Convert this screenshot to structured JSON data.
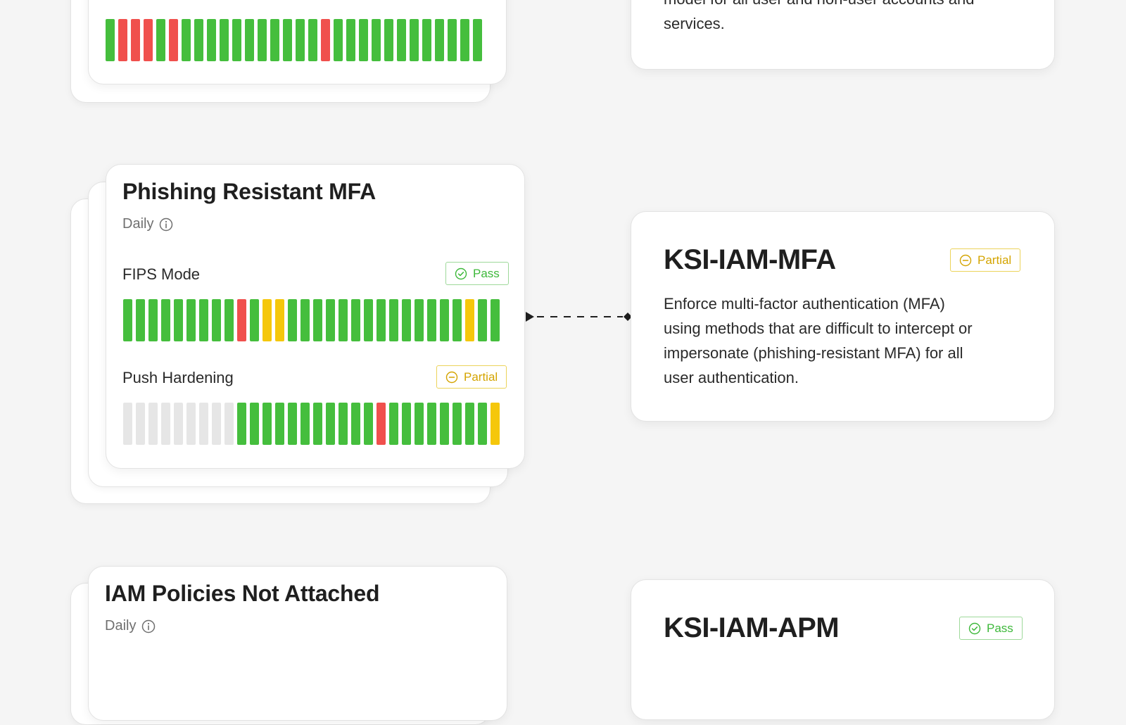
{
  "colors": {
    "pass": "#45be3d",
    "fail": "#f0504d",
    "partial": "#f5c70b",
    "no_data": "#e6e6e6",
    "pass_badge_text": "#3db83a",
    "partial_badge_text": "#d4a400"
  },
  "top_card": {
    "bars": [
      "g",
      "r",
      "r",
      "r",
      "g",
      "r",
      "g",
      "g",
      "g",
      "g",
      "g",
      "g",
      "g",
      "g",
      "g",
      "g",
      "g",
      "r",
      "g",
      "g",
      "g",
      "g",
      "g",
      "g",
      "g",
      "g",
      "g",
      "g",
      "g",
      "g"
    ]
  },
  "top_ksi": {
    "desc_line1": "model for all user and non-user accounts and",
    "desc_line2": "services."
  },
  "phishing_card": {
    "title": "Phishing Resistant MFA",
    "frequency": "Daily",
    "frequency_icon": "info-icon",
    "checks": [
      {
        "label": "FIPS Mode",
        "badge": "Pass",
        "badge_icon": "check-circle-icon",
        "bars": [
          "g",
          "g",
          "g",
          "g",
          "g",
          "g",
          "g",
          "g",
          "g",
          "r",
          "g",
          "y",
          "y",
          "g",
          "g",
          "g",
          "g",
          "g",
          "g",
          "g",
          "g",
          "g",
          "g",
          "g",
          "g",
          "g",
          "g",
          "y",
          "g",
          "g"
        ]
      },
      {
        "label": "Push Hardening",
        "badge": "Partial",
        "badge_icon": "minus-circle-icon",
        "bars": [
          "n",
          "n",
          "n",
          "n",
          "n",
          "n",
          "n",
          "n",
          "n",
          "g",
          "g",
          "g",
          "g",
          "g",
          "g",
          "g",
          "g",
          "g",
          "g",
          "g",
          "r",
          "g",
          "g",
          "g",
          "g",
          "g",
          "g",
          "g",
          "g",
          "y"
        ]
      }
    ]
  },
  "mfa_ksi": {
    "title": "KSI-IAM-MFA",
    "badge": "Partial",
    "badge_icon": "minus-circle-icon",
    "desc_lines": [
      "Enforce multi-factor authentication (MFA)",
      "using methods that are difficult to intercept or",
      "impersonate (phishing-resistant MFA) for all",
      "user authentication."
    ]
  },
  "iam_card": {
    "title": "IAM Policies Not Attached",
    "frequency": "Daily",
    "frequency_icon": "info-icon"
  },
  "apm_ksi": {
    "title": "KSI-IAM-APM",
    "badge": "Pass",
    "badge_icon": "check-circle-icon"
  }
}
